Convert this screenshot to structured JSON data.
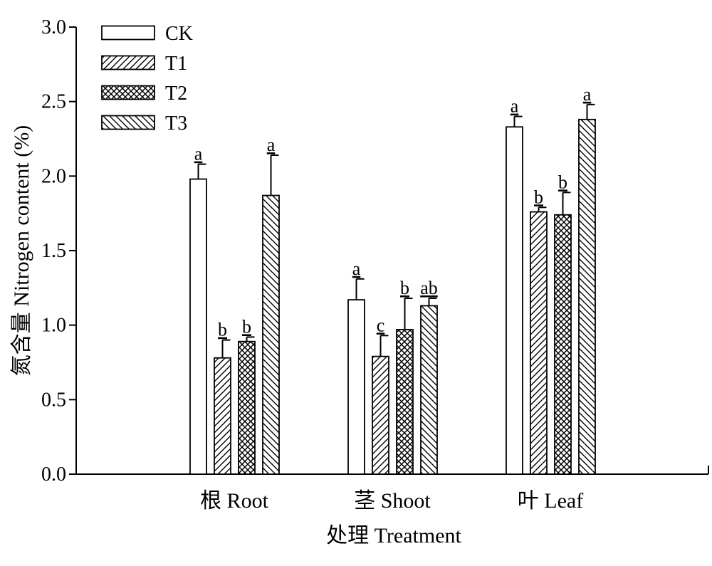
{
  "chart_data": {
    "type": "bar",
    "categories": [
      "根 Root",
      "茎 Shoot",
      "叶 Leaf"
    ],
    "xlabel": "处理 Treatment",
    "ylabel": "氮含量 Nitrogen content (%)",
    "ylim": [
      0,
      3.0
    ],
    "yticks": [
      "0.0",
      "0.5",
      "1.0",
      "1.5",
      "2.0",
      "2.5",
      "3.0"
    ],
    "legend_position": "top-left",
    "grid": false,
    "series": [
      {
        "name": "CK",
        "pattern": "none",
        "values": [
          1.98,
          1.17,
          2.33
        ],
        "errors": [
          0.1,
          0.14,
          0.07
        ],
        "labels": [
          "a",
          "a",
          "a"
        ]
      },
      {
        "name": "T1",
        "pattern": "hatch-forward",
        "values": [
          0.78,
          0.79,
          1.76
        ],
        "errors": [
          0.12,
          0.14,
          0.03
        ],
        "labels": [
          "b",
          "c",
          "b"
        ]
      },
      {
        "name": "T2",
        "pattern": "crosshatch",
        "values": [
          0.89,
          0.97,
          1.74
        ],
        "errors": [
          0.03,
          0.21,
          0.15
        ],
        "labels": [
          "b",
          "b",
          "b"
        ]
      },
      {
        "name": "T3",
        "pattern": "hatch-backward",
        "values": [
          1.87,
          1.13,
          2.38
        ],
        "errors": [
          0.27,
          0.05,
          0.1
        ],
        "labels": [
          "a",
          "ab",
          "a"
        ]
      }
    ]
  }
}
